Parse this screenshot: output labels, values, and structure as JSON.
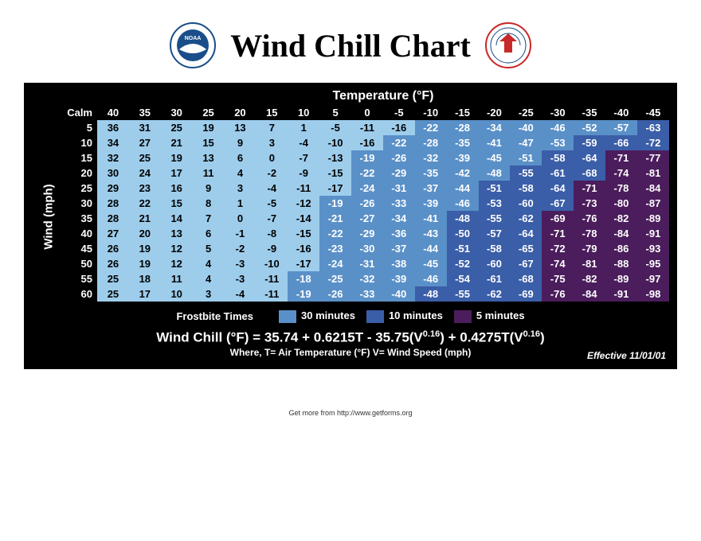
{
  "title": "Wind Chill Chart",
  "colors": {
    "background": "#000000",
    "light": "#9ecdec",
    "mid": "#5a90c8",
    "dark": "#3b5ea8",
    "purple": "#4b1d5c",
    "white_text": "#ffffff",
    "black_text": "#000000"
  },
  "temp_header": "Temperature (°F)",
  "y_axis_label": "Wind (mph)",
  "calm_label": "Calm",
  "temps": [
    40,
    35,
    30,
    25,
    20,
    15,
    10,
    5,
    0,
    -5,
    -10,
    -15,
    -20,
    -25,
    -30,
    -35,
    -40,
    -45
  ],
  "winds": [
    5,
    10,
    15,
    20,
    25,
    30,
    35,
    40,
    45,
    50,
    55,
    60
  ],
  "cells": [
    [
      [
        36,
        0
      ],
      [
        31,
        0
      ],
      [
        25,
        0
      ],
      [
        19,
        0
      ],
      [
        13,
        0
      ],
      [
        7,
        0
      ],
      [
        1,
        0
      ],
      [
        -5,
        0
      ],
      [
        -11,
        0
      ],
      [
        -16,
        0
      ],
      [
        -22,
        1
      ],
      [
        -28,
        1
      ],
      [
        -34,
        1
      ],
      [
        -40,
        1
      ],
      [
        -46,
        1
      ],
      [
        -52,
        1
      ],
      [
        -57,
        1
      ],
      [
        -63,
        2
      ]
    ],
    [
      [
        34,
        0
      ],
      [
        27,
        0
      ],
      [
        21,
        0
      ],
      [
        15,
        0
      ],
      [
        9,
        0
      ],
      [
        3,
        0
      ],
      [
        -4,
        0
      ],
      [
        -10,
        0
      ],
      [
        -16,
        0
      ],
      [
        -22,
        1
      ],
      [
        -28,
        1
      ],
      [
        -35,
        1
      ],
      [
        -41,
        1
      ],
      [
        -47,
        1
      ],
      [
        -53,
        1
      ],
      [
        -59,
        2
      ],
      [
        -66,
        2
      ],
      [
        -72,
        2
      ]
    ],
    [
      [
        32,
        0
      ],
      [
        25,
        0
      ],
      [
        19,
        0
      ],
      [
        13,
        0
      ],
      [
        6,
        0
      ],
      [
        0,
        0
      ],
      [
        -7,
        0
      ],
      [
        -13,
        0
      ],
      [
        -19,
        1
      ],
      [
        -26,
        1
      ],
      [
        -32,
        1
      ],
      [
        -39,
        1
      ],
      [
        -45,
        1
      ],
      [
        -51,
        1
      ],
      [
        -58,
        2
      ],
      [
        -64,
        2
      ],
      [
        -71,
        3
      ],
      [
        -77,
        3
      ]
    ],
    [
      [
        30,
        0
      ],
      [
        24,
        0
      ],
      [
        17,
        0
      ],
      [
        11,
        0
      ],
      [
        4,
        0
      ],
      [
        -2,
        0
      ],
      [
        -9,
        0
      ],
      [
        -15,
        0
      ],
      [
        -22,
        1
      ],
      [
        -29,
        1
      ],
      [
        -35,
        1
      ],
      [
        -42,
        1
      ],
      [
        -48,
        1
      ],
      [
        -55,
        2
      ],
      [
        -61,
        2
      ],
      [
        -68,
        2
      ],
      [
        -74,
        3
      ],
      [
        -81,
        3
      ]
    ],
    [
      [
        29,
        0
      ],
      [
        23,
        0
      ],
      [
        16,
        0
      ],
      [
        9,
        0
      ],
      [
        3,
        0
      ],
      [
        -4,
        0
      ],
      [
        -11,
        0
      ],
      [
        -17,
        0
      ],
      [
        -24,
        1
      ],
      [
        -31,
        1
      ],
      [
        -37,
        1
      ],
      [
        -44,
        1
      ],
      [
        -51,
        2
      ],
      [
        -58,
        2
      ],
      [
        -64,
        2
      ],
      [
        -71,
        3
      ],
      [
        -78,
        3
      ],
      [
        -84,
        3
      ]
    ],
    [
      [
        28,
        0
      ],
      [
        22,
        0
      ],
      [
        15,
        0
      ],
      [
        8,
        0
      ],
      [
        1,
        0
      ],
      [
        -5,
        0
      ],
      [
        -12,
        0
      ],
      [
        -19,
        1
      ],
      [
        -26,
        1
      ],
      [
        -33,
        1
      ],
      [
        -39,
        1
      ],
      [
        -46,
        1
      ],
      [
        -53,
        2
      ],
      [
        -60,
        2
      ],
      [
        -67,
        2
      ],
      [
        -73,
        3
      ],
      [
        -80,
        3
      ],
      [
        -87,
        3
      ]
    ],
    [
      [
        28,
        0
      ],
      [
        21,
        0
      ],
      [
        14,
        0
      ],
      [
        7,
        0
      ],
      [
        0,
        0
      ],
      [
        -7,
        0
      ],
      [
        -14,
        0
      ],
      [
        -21,
        1
      ],
      [
        -27,
        1
      ],
      [
        -34,
        1
      ],
      [
        -41,
        1
      ],
      [
        -48,
        2
      ],
      [
        -55,
        2
      ],
      [
        -62,
        2
      ],
      [
        -69,
        3
      ],
      [
        -76,
        3
      ],
      [
        -82,
        3
      ],
      [
        -89,
        3
      ]
    ],
    [
      [
        27,
        0
      ],
      [
        20,
        0
      ],
      [
        13,
        0
      ],
      [
        6,
        0
      ],
      [
        -1,
        0
      ],
      [
        -8,
        0
      ],
      [
        -15,
        0
      ],
      [
        -22,
        1
      ],
      [
        -29,
        1
      ],
      [
        -36,
        1
      ],
      [
        -43,
        1
      ],
      [
        -50,
        2
      ],
      [
        -57,
        2
      ],
      [
        -64,
        2
      ],
      [
        -71,
        3
      ],
      [
        -78,
        3
      ],
      [
        -84,
        3
      ],
      [
        -91,
        3
      ]
    ],
    [
      [
        26,
        0
      ],
      [
        19,
        0
      ],
      [
        12,
        0
      ],
      [
        5,
        0
      ],
      [
        -2,
        0
      ],
      [
        -9,
        0
      ],
      [
        -16,
        0
      ],
      [
        -23,
        1
      ],
      [
        -30,
        1
      ],
      [
        -37,
        1
      ],
      [
        -44,
        1
      ],
      [
        -51,
        2
      ],
      [
        -58,
        2
      ],
      [
        -65,
        2
      ],
      [
        -72,
        3
      ],
      [
        -79,
        3
      ],
      [
        -86,
        3
      ],
      [
        -93,
        3
      ]
    ],
    [
      [
        26,
        0
      ],
      [
        19,
        0
      ],
      [
        12,
        0
      ],
      [
        4,
        0
      ],
      [
        -3,
        0
      ],
      [
        -10,
        0
      ],
      [
        -17,
        0
      ],
      [
        -24,
        1
      ],
      [
        -31,
        1
      ],
      [
        -38,
        1
      ],
      [
        -45,
        1
      ],
      [
        -52,
        2
      ],
      [
        -60,
        2
      ],
      [
        -67,
        2
      ],
      [
        -74,
        3
      ],
      [
        -81,
        3
      ],
      [
        -88,
        3
      ],
      [
        -95,
        3
      ]
    ],
    [
      [
        25,
        0
      ],
      [
        18,
        0
      ],
      [
        11,
        0
      ],
      [
        4,
        0
      ],
      [
        -3,
        0
      ],
      [
        -11,
        0
      ],
      [
        -18,
        1
      ],
      [
        -25,
        1
      ],
      [
        -32,
        1
      ],
      [
        -39,
        1
      ],
      [
        -46,
        1
      ],
      [
        -54,
        2
      ],
      [
        -61,
        2
      ],
      [
        -68,
        2
      ],
      [
        -75,
        3
      ],
      [
        -82,
        3
      ],
      [
        -89,
        3
      ],
      [
        -97,
        3
      ]
    ],
    [
      [
        25,
        0
      ],
      [
        17,
        0
      ],
      [
        10,
        0
      ],
      [
        3,
        0
      ],
      [
        -4,
        0
      ],
      [
        -11,
        0
      ],
      [
        -19,
        1
      ],
      [
        -26,
        1
      ],
      [
        -33,
        1
      ],
      [
        -40,
        1
      ],
      [
        -48,
        2
      ],
      [
        -55,
        2
      ],
      [
        -62,
        2
      ],
      [
        -69,
        2
      ],
      [
        -76,
        3
      ],
      [
        -84,
        3
      ],
      [
        -91,
        3
      ],
      [
        -98,
        3
      ]
    ]
  ],
  "legend": {
    "title": "Frostbite Times",
    "items": [
      {
        "label": "30 minutes",
        "color": "#5a90c8"
      },
      {
        "label": "10 minutes",
        "color": "#3b5ea8"
      },
      {
        "label": "5 minutes",
        "color": "#4b1d5c"
      }
    ]
  },
  "formula": "Wind Chill (°F) = 35.74 + 0.6215T - 35.75(V^0.16) + 0.4275T(V^0.16)",
  "where": "Where, T= Air Temperature (°F)   V= Wind Speed (mph)",
  "effective": "Effective 11/01/01",
  "footer": "Get more from http://www.getforms.org"
}
